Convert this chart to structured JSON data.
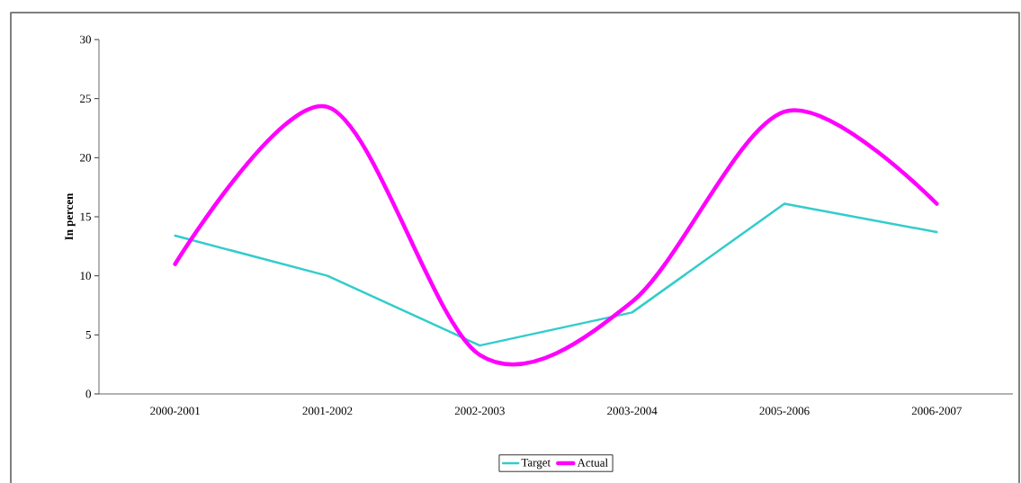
{
  "chart_data": {
    "type": "line",
    "ylabel": "In percen",
    "categories": [
      "2000-2001",
      "2001-2002",
      "2002-2003",
      "2003-2004",
      "2005-2006",
      "2006-2007"
    ],
    "series": [
      {
        "name": "Target",
        "color": "#33cccc",
        "values": [
          13.4,
          10,
          4.1,
          6.9,
          16.1,
          13.7
        ]
      },
      {
        "name": "Actual",
        "color": "#ff00ff",
        "values": [
          11,
          24.3,
          3.3,
          7.8,
          23.9,
          16.1
        ]
      }
    ],
    "ylim": [
      0,
      30
    ],
    "yticks": [
      0,
      5,
      10,
      15,
      20,
      25,
      30
    ],
    "legend": "bottom",
    "grid": false,
    "marker": "none",
    "line_style": "solid"
  }
}
